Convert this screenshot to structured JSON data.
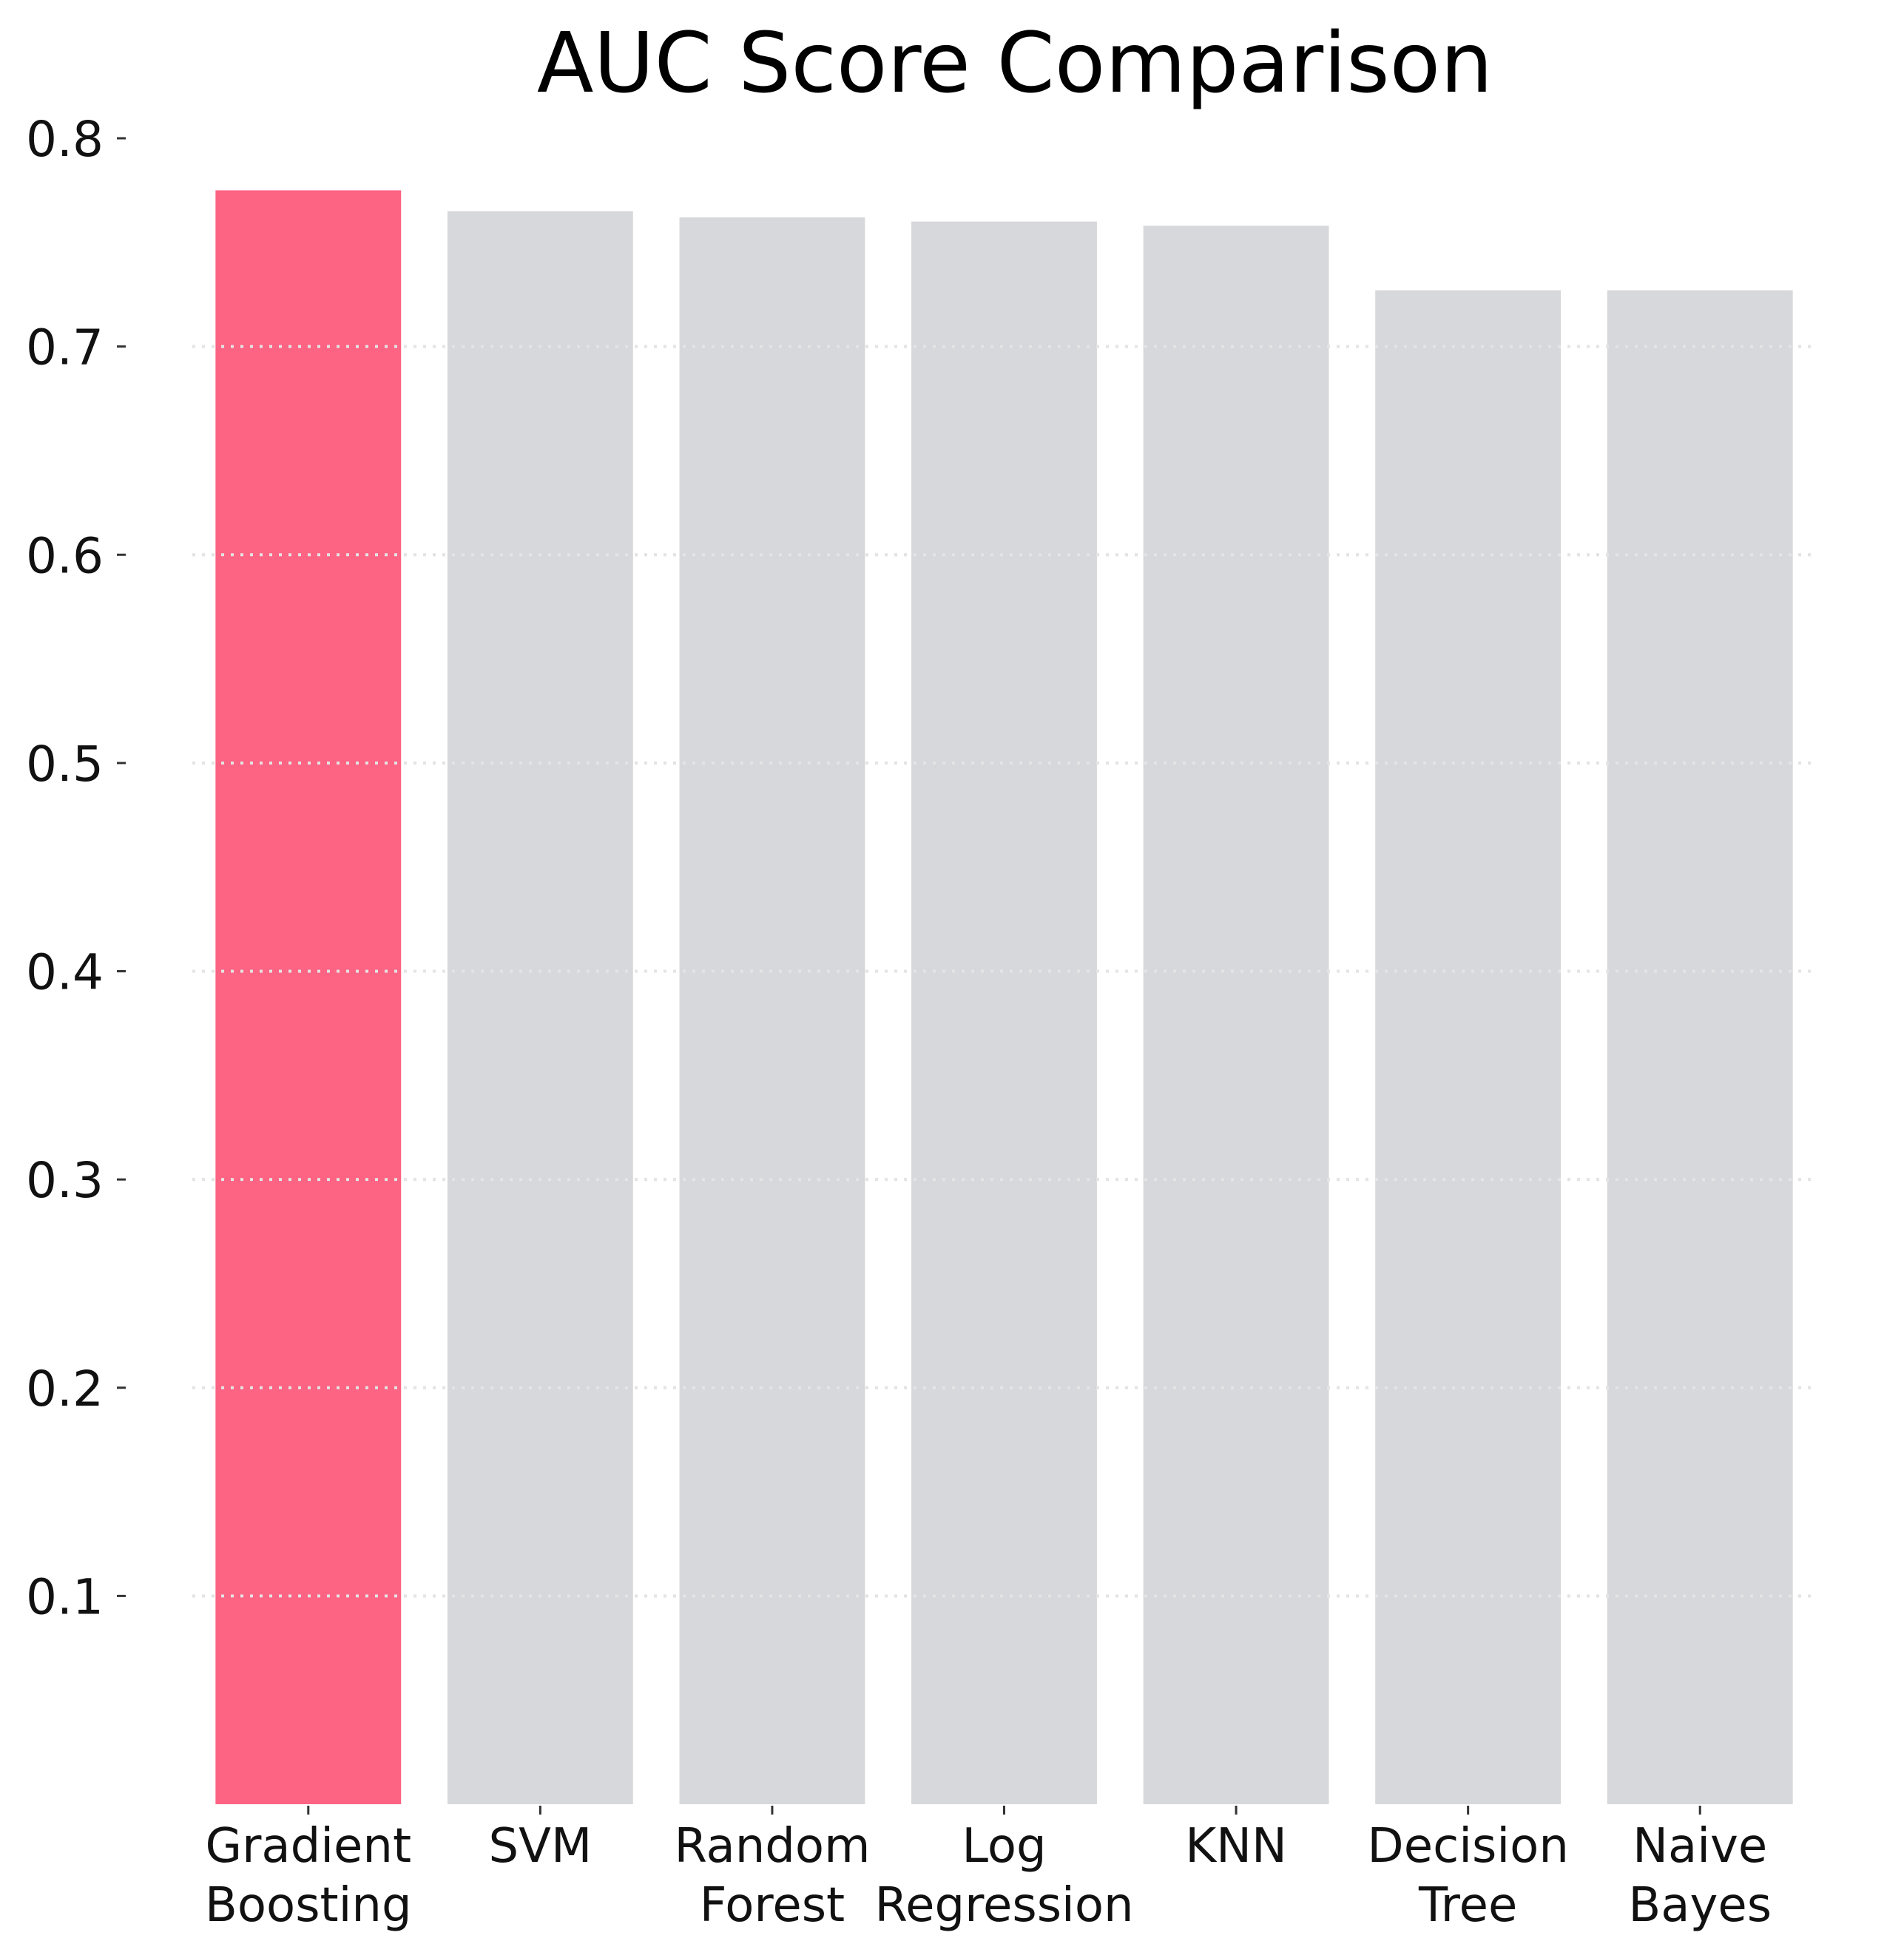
{
  "chart_data": {
    "type": "bar",
    "title": "AUC Score Comparison",
    "xlabel": "",
    "ylabel": "",
    "categories": [
      "Gradient\nBoosting",
      "SVM",
      "Random\nForest",
      "Log\nRegression",
      "KNN",
      "Decision\nTree",
      "Naive\nBayes"
    ],
    "values": [
      0.775,
      0.765,
      0.762,
      0.76,
      0.758,
      0.727,
      0.727
    ],
    "highlight_index": 0,
    "ylim": [
      0,
      0.8
    ],
    "yticks": [
      0.1,
      0.2,
      0.3,
      0.4,
      0.5,
      0.6,
      0.7,
      0.8
    ],
    "ytick_labels": [
      "0.1",
      "0.2",
      "0.3",
      "0.4",
      "0.5",
      "0.6",
      "0.7",
      "0.8"
    ],
    "grid": true,
    "grid_axis": "y",
    "legend": "none",
    "colors": {
      "highlight": "#fd6383",
      "default": "#d7d8db",
      "grid": "#e4e4e4",
      "text": "#111111"
    }
  }
}
